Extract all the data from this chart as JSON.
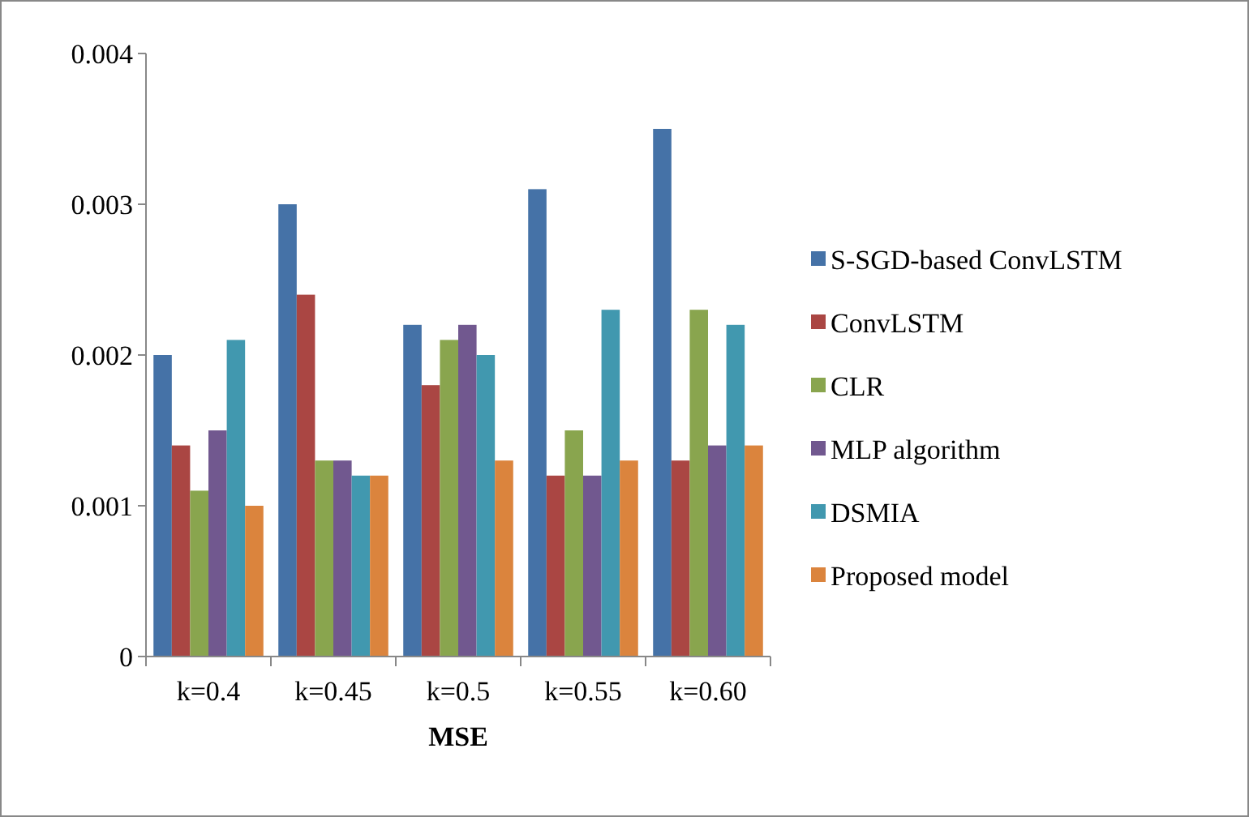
{
  "chart_data": {
    "type": "bar",
    "xlabel": "MSE",
    "categories": [
      "k=0.4",
      "k=0.45",
      "k=0.5",
      "k=0.55",
      "k=0.60"
    ],
    "series": [
      {
        "name": "S-SGD-based ConvLSTM",
        "color": "#4572a7",
        "values": [
          0.002,
          0.003,
          0.0022,
          0.0031,
          0.0035
        ]
      },
      {
        "name": "ConvLSTM",
        "color": "#aa4643",
        "values": [
          0.0014,
          0.0024,
          0.0018,
          0.0012,
          0.0013
        ]
      },
      {
        "name": "CLR",
        "color": "#89a54e",
        "values": [
          0.0011,
          0.0013,
          0.0021,
          0.0015,
          0.0023
        ]
      },
      {
        "name": "MLP algorithm",
        "color": "#71588f",
        "values": [
          0.0015,
          0.0013,
          0.0022,
          0.0012,
          0.0014
        ]
      },
      {
        "name": "DSMIA",
        "color": "#4198af",
        "values": [
          0.0021,
          0.0012,
          0.002,
          0.0023,
          0.0022
        ]
      },
      {
        "name": "Proposed model",
        "color": "#db843d",
        "values": [
          0.001,
          0.0012,
          0.0013,
          0.0013,
          0.0014
        ]
      }
    ],
    "ylim": [
      0,
      0.004
    ],
    "yticks": [
      0,
      0.001,
      0.002,
      0.003,
      0.004
    ],
    "grid": false,
    "legend": "right"
  }
}
